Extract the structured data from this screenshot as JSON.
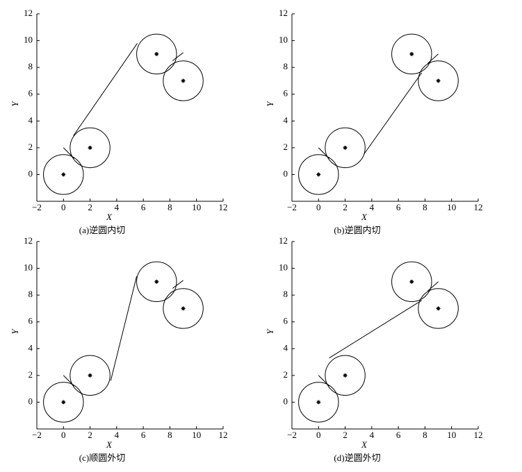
{
  "chart_data": [
    {
      "type": "line",
      "title": "(a)逆圆内切",
      "xlabel": "X",
      "ylabel": "Y",
      "xlim": [
        -2,
        12
      ],
      "ylim": [
        -2,
        12
      ],
      "xticks": [
        {
          "value": -2,
          "label": "−2"
        },
        0,
        2,
        4,
        6,
        8,
        10,
        12
      ],
      "yticks": [
        0,
        2,
        4,
        6,
        8,
        10,
        12
      ],
      "circles": {
        "x": [
          0,
          2,
          7,
          9
        ],
        "y": [
          0,
          2,
          9,
          7
        ],
        "radius": 1.5
      },
      "color": "#000000",
      "series": [
        {
          "x": [
            0,
            0.8
          ],
          "y": [
            2,
            1.2
          ]
        },
        {
          "x": [
            0.75,
            5.55
          ],
          "y": [
            2.9,
            9.8
          ]
        },
        {
          "x": [
            8.2,
            9
          ],
          "y": [
            8.5,
            9.1
          ]
        }
      ]
    },
    {
      "type": "line",
      "title": "(b)逆圆内切",
      "xlabel": "X",
      "ylabel": "Y",
      "xlim": [
        -2,
        12
      ],
      "ylim": [
        -2,
        12
      ],
      "xticks": [
        {
          "value": -2,
          "label": "−2"
        },
        0,
        2,
        4,
        6,
        8,
        10,
        12
      ],
      "yticks": [
        0,
        2,
        4,
        6,
        8,
        10,
        12
      ],
      "circles": {
        "x": [
          0,
          2,
          7,
          9
        ],
        "y": [
          0,
          2,
          9,
          7
        ],
        "radius": 1.5
      },
      "color": "#000000",
      "series": [
        {
          "x": [
            0,
            0.8
          ],
          "y": [
            2,
            1.2
          ]
        },
        {
          "x": [
            3.4,
            7.75
          ],
          "y": [
            1.5,
            7.6
          ]
        },
        {
          "x": [
            8.2,
            9
          ],
          "y": [
            8.3,
            9
          ]
        }
      ]
    },
    {
      "type": "line",
      "title": "(c)顺圆外切",
      "xlabel": "X",
      "ylabel": "Y",
      "xlim": [
        -2,
        12
      ],
      "ylim": [
        -2,
        12
      ],
      "xticks": [
        {
          "value": -2,
          "label": "−2"
        },
        0,
        2,
        4,
        6,
        8,
        10,
        12
      ],
      "yticks": [
        0,
        2,
        4,
        6,
        8,
        10,
        12
      ],
      "circles": {
        "x": [
          0,
          2,
          7,
          9
        ],
        "y": [
          0,
          2,
          9,
          7
        ],
        "radius": 1.5
      },
      "color": "#000000",
      "series": [
        {
          "x": [
            0,
            0.8
          ],
          "y": [
            2,
            1.2
          ]
        },
        {
          "x": [
            3.55,
            5.5
          ],
          "y": [
            1.6,
            9.4
          ]
        },
        {
          "x": [
            8.2,
            9
          ],
          "y": [
            8.5,
            9.1
          ]
        }
      ]
    },
    {
      "type": "line",
      "title": "(d)逆圆外切",
      "xlabel": "X",
      "ylabel": "Y",
      "xlim": [
        -2,
        12
      ],
      "ylim": [
        -2,
        12
      ],
      "xticks": [
        {
          "value": -2,
          "label": "−2"
        },
        0,
        2,
        4,
        6,
        8,
        10,
        12
      ],
      "yticks": [
        0,
        2,
        4,
        6,
        8,
        10,
        12
      ],
      "circles": {
        "x": [
          0,
          2,
          7,
          9
        ],
        "y": [
          0,
          2,
          9,
          7
        ],
        "radius": 1.5
      },
      "color": "#000000",
      "series": [
        {
          "x": [
            0,
            0.8
          ],
          "y": [
            2,
            1.2
          ]
        },
        {
          "x": [
            0.8,
            7.75
          ],
          "y": [
            3.3,
            7.6
          ]
        },
        {
          "x": [
            8.2,
            9
          ],
          "y": [
            8.3,
            9
          ]
        }
      ]
    }
  ]
}
